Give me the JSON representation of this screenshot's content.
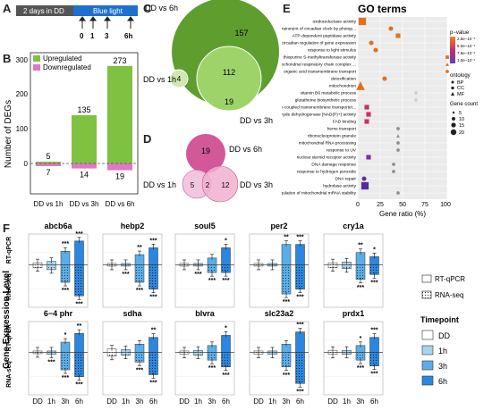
{
  "panel_labels": {
    "a": "A",
    "b": "B",
    "c": "C",
    "d": "D",
    "e": "E",
    "f": "F"
  },
  "timeline": {
    "dark_label": "2 days in DD",
    "light_label": "Blue light",
    "time_ticks": [
      "0",
      "1",
      "3",
      "6h"
    ],
    "colors": {
      "dark": "#555555",
      "light": "#1e6fd0"
    }
  },
  "deg_chart": {
    "ylabel": "Number of DEGs",
    "legend": {
      "up": "Upregulated",
      "down": "Downregulated"
    },
    "colors": {
      "up": "#7fc242",
      "down": "#e178c5"
    },
    "yticks": [
      "300",
      "200",
      "100",
      "0"
    ],
    "chart_data": {
      "type": "bar",
      "categories": [
        "DD vs 1h",
        "DD vs 3h",
        "DD vs 6h"
      ],
      "series": [
        {
          "name": "Upregulated",
          "values": [
            5,
            135,
            273
          ]
        },
        {
          "name": "Downregulated",
          "values": [
            7,
            14,
            19
          ]
        }
      ],
      "ylabel": "Number of DEGs",
      "ylim": [
        -20,
        300
      ]
    }
  },
  "venn_up": {
    "labels": {
      "six": "DD vs 6h",
      "one": "DD vs 1h",
      "three": "DD vs 3h"
    },
    "counts": {
      "six_only": "157",
      "six_three": "112",
      "one_in": "4",
      "three_only": "19"
    },
    "colors": {
      "c6": "#5e9e2e",
      "c3": "#9ed36a",
      "c1": "#cfe8b0"
    }
  },
  "venn_down": {
    "labels": {
      "six": "DD vs 6h",
      "one": "DD vs 1h",
      "three": "DD vs 3h"
    },
    "counts": {
      "six_only": "19",
      "one_only": "5",
      "overlap": "2",
      "three_only": "12"
    },
    "colors": {
      "c6": "#d2589a",
      "c1": "#f1bddb",
      "c3": "#f0b0d0"
    }
  },
  "go": {
    "title": "GO terms",
    "xlabel": "Gene ratio (%)",
    "xticks": [
      "0",
      "25",
      "50",
      "75",
      "100"
    ],
    "terms": [
      "oxidoreductase activity",
      "entrainment of circadian clock by photop...",
      "ATP-dependent peptidase activity",
      "circadian regulation of gene expression",
      "response to light stimulus",
      "thiopurine S-methyltransferase activity",
      "mitochondrial respiratory chain complex ...",
      "organic acid transmembrane transport",
      "detoxification",
      "mitochondrion",
      "vitamin B6 metabolic process",
      "glutathione biosynthetic process",
      "ATPase-coupled transmembrane transporter...",
      "aldehyde dehydrogenase [NAD(P)+] activity",
      "FAD binding",
      "heme transport",
      "ribonucleoprotein granule",
      "mitochondrial RNA processing",
      "response to UV",
      "nuclear steroid receptor activity",
      "DNA damage response",
      "response to hydrogen peroxide",
      "DNA repair",
      "hydrolase activity",
      "regulation of mitochondrial mRNA stability"
    ],
    "legend": {
      "pvalue_title": "p−value",
      "pvalue_ticks": [
        "2.5e−10⁻¹",
        "5.0e−10⁻¹",
        "7.5e−10⁻¹",
        "1.0e−10⁻¹"
      ],
      "ontology_title": "ontology",
      "ontology_items": [
        "BP",
        "CC",
        "MF"
      ],
      "count_title": "Gene count",
      "count_items": [
        "5",
        "10",
        "15",
        "20"
      ]
    },
    "chart_data": {
      "type": "scatter",
      "x": [
        5,
        37,
        45,
        15,
        20,
        100,
        100,
        100,
        30,
        3,
        65,
        65,
        10,
        12,
        10,
        45,
        45,
        45,
        45,
        12,
        40,
        40,
        7,
        8,
        45
      ],
      "y": [
        "oxidoreductase activity",
        "entrainment of circadian clock by photop...",
        "ATP-dependent peptidase activity",
        "circadian regulation of gene expression",
        "response to light stimulus",
        "thiopurine S-methyltransferase activity",
        "mitochondrial respiratory chain complex ...",
        "organic acid transmembrane transport",
        "detoxification",
        "mitochondrion",
        "vitamin B6 metabolic process",
        "glutathione biosynthetic process",
        "ATPase-coupled transmembrane transporter...",
        "aldehyde dehydrogenase [NAD(P)+] activity",
        "FAD binding",
        "heme transport",
        "ribonucleoprotein granule",
        "mitochondrial RNA processing",
        "response to UV",
        "nuclear steroid receptor activity",
        "DNA damage response",
        "response to hydrogen peroxide",
        "DNA repair",
        "hydrolase activity",
        "regulation of mitochondrial mRNA stability"
      ],
      "ontology": [
        "MF",
        "BP",
        "MF",
        "BP",
        "BP",
        "MF",
        "CC",
        "BP",
        "BP",
        "CC",
        "BP",
        "BP",
        "MF",
        "MF",
        "MF",
        "BP",
        "CC",
        "BP",
        "BP",
        "MF",
        "BP",
        "BP",
        "BP",
        "MF",
        "BP"
      ],
      "gene_count": [
        12,
        3,
        3,
        3,
        3,
        1,
        1,
        1,
        3,
        18,
        1,
        1,
        3,
        3,
        3,
        1,
        1,
        1,
        1,
        3,
        1,
        1,
        3,
        12,
        1
      ],
      "color": [
        "#e07020",
        "#e07020",
        "#e07020",
        "#e07020",
        "#e07020",
        "#e07020",
        "#e07020",
        "#e07020",
        "#e07020",
        "#e07020",
        "#d0d0d0",
        "#d0d0d0",
        "#c8306a",
        "#c8306a",
        "#c8306a",
        "#909090",
        "#909090",
        "#909090",
        "#909090",
        "#8030a0",
        "#909090",
        "#909090",
        "#6030a0",
        "#5a2a9a",
        "#909090"
      ],
      "xlabel": "Gene ratio (%)",
      "xlim": [
        0,
        100
      ]
    }
  },
  "expression": {
    "ylabel": "Gene Expression Level",
    "row_axis": {
      "top": "RT-qPCR",
      "bottom": "RNA-seq"
    },
    "xcats": [
      "DD",
      "1h",
      "3h",
      "6h"
    ],
    "method_legend": {
      "rt": "RT-qPCR",
      "rna": "RNA-seq"
    },
    "timepoint_title": "Timepoint",
    "timepoints": [
      "DD",
      "1h",
      "3h",
      "6h"
    ],
    "tp_colors": [
      "#ffffff",
      "#a8d4f0",
      "#5aaee8",
      "#2a86e0"
    ],
    "genes": [
      {
        "name": "abcb6a",
        "rt": [
          0.3,
          0.5,
          2.0,
          3.5
        ],
        "rna": [
          0.3,
          0.5,
          1.8,
          3.2
        ],
        "top_sig": [
          "",
          "",
          "***",
          "***"
        ],
        "bot_sig": [
          "",
          "",
          "***",
          "***"
        ],
        "yticks": [
          "6",
          "3",
          "0",
          "−3",
          "−6"
        ]
      },
      {
        "name": "hebp2",
        "rt": [
          0.1,
          0.1,
          1.5,
          2.5
        ],
        "rna": [
          0.1,
          0.1,
          1.8,
          2.5
        ],
        "top_sig": [
          "",
          "",
          "**",
          "***"
        ],
        "bot_sig": [
          "",
          "***",
          "***",
          "***"
        ],
        "yticks": [
          "",
          "",
          "",
          "",
          ""
        ]
      },
      {
        "name": "soul5",
        "rt": [
          0.1,
          0.1,
          1.0,
          2.5
        ],
        "rna": [
          0.1,
          0.1,
          0.8,
          0.8
        ],
        "top_sig": [
          "",
          "",
          "",
          "*"
        ],
        "bot_sig": [
          "",
          "***",
          "***",
          "***"
        ],
        "yticks": [
          "",
          "",
          "",
          "",
          ""
        ]
      },
      {
        "name": "per2",
        "rt": [
          0.1,
          0.1,
          3.0,
          3.0
        ],
        "rna": [
          0.1,
          0.1,
          3.0,
          2.5
        ],
        "top_sig": [
          "",
          "",
          "**",
          "***"
        ],
        "bot_sig": [
          "",
          "",
          "***",
          "***"
        ],
        "yticks": [
          "30",
          "20",
          "10",
          "0",
          "−10"
        ]
      },
      {
        "name": "cry1a",
        "rt": [
          0.3,
          0.4,
          1.8,
          1.2
        ],
        "rna": [
          0.3,
          0.4,
          1.5,
          1.0
        ],
        "top_sig": [
          "",
          "",
          "**",
          "*"
        ],
        "bot_sig": [
          "",
          "",
          "***",
          "***"
        ],
        "yticks": [
          "",
          "",
          "",
          "",
          ""
        ]
      },
      {
        "name": "6−4 phr",
        "rt": [
          0.1,
          0.2,
          1.5,
          2.8
        ],
        "rna": [
          0.1,
          0.2,
          1.8,
          2.5
        ],
        "top_sig": [
          "",
          "",
          "*",
          "**"
        ],
        "bot_sig": [
          "",
          "***",
          "***",
          "***"
        ],
        "yticks": [
          "",
          "",
          "",
          "",
          ""
        ]
      },
      {
        "name": "sdha",
        "rt": [
          0.5,
          0.4,
          1.2,
          2.2
        ],
        "rna": [
          0.4,
          0.3,
          1.0,
          2.3
        ],
        "top_sig": [
          "",
          "",
          "",
          "**"
        ],
        "bot_sig": [
          "",
          "",
          "***",
          "***"
        ],
        "yticks": [
          "",
          "",
          "",
          "",
          ""
        ]
      },
      {
        "name": "blvra",
        "rt": [
          0.2,
          0.3,
          1.0,
          2.5
        ],
        "rna": [
          0.2,
          0.3,
          0.8,
          1.5
        ],
        "top_sig": [
          "",
          "",
          "",
          "*"
        ],
        "bot_sig": [
          "",
          "",
          "***",
          "***"
        ],
        "yticks": [
          "",
          "",
          "",
          "",
          ""
        ]
      },
      {
        "name": "slc23a2",
        "rt": [
          0.2,
          0.2,
          1.2,
          3.0
        ],
        "rna": [
          0.2,
          0.2,
          1.5,
          3.2
        ],
        "top_sig": [
          "",
          "",
          "",
          "***"
        ],
        "bot_sig": [
          "",
          "",
          "***",
          "***"
        ],
        "yticks": [
          "",
          "",
          "",
          "",
          ""
        ]
      },
      {
        "name": "prdx1",
        "rt": [
          0.3,
          0.3,
          1.0,
          2.2
        ],
        "rna": [
          0.2,
          0.2,
          0.8,
          1.4
        ],
        "top_sig": [
          "",
          "",
          "*",
          "***"
        ],
        "bot_sig": [
          "",
          "",
          "***",
          "***"
        ],
        "yticks": [
          "",
          "",
          "",
          "",
          ""
        ]
      }
    ]
  }
}
